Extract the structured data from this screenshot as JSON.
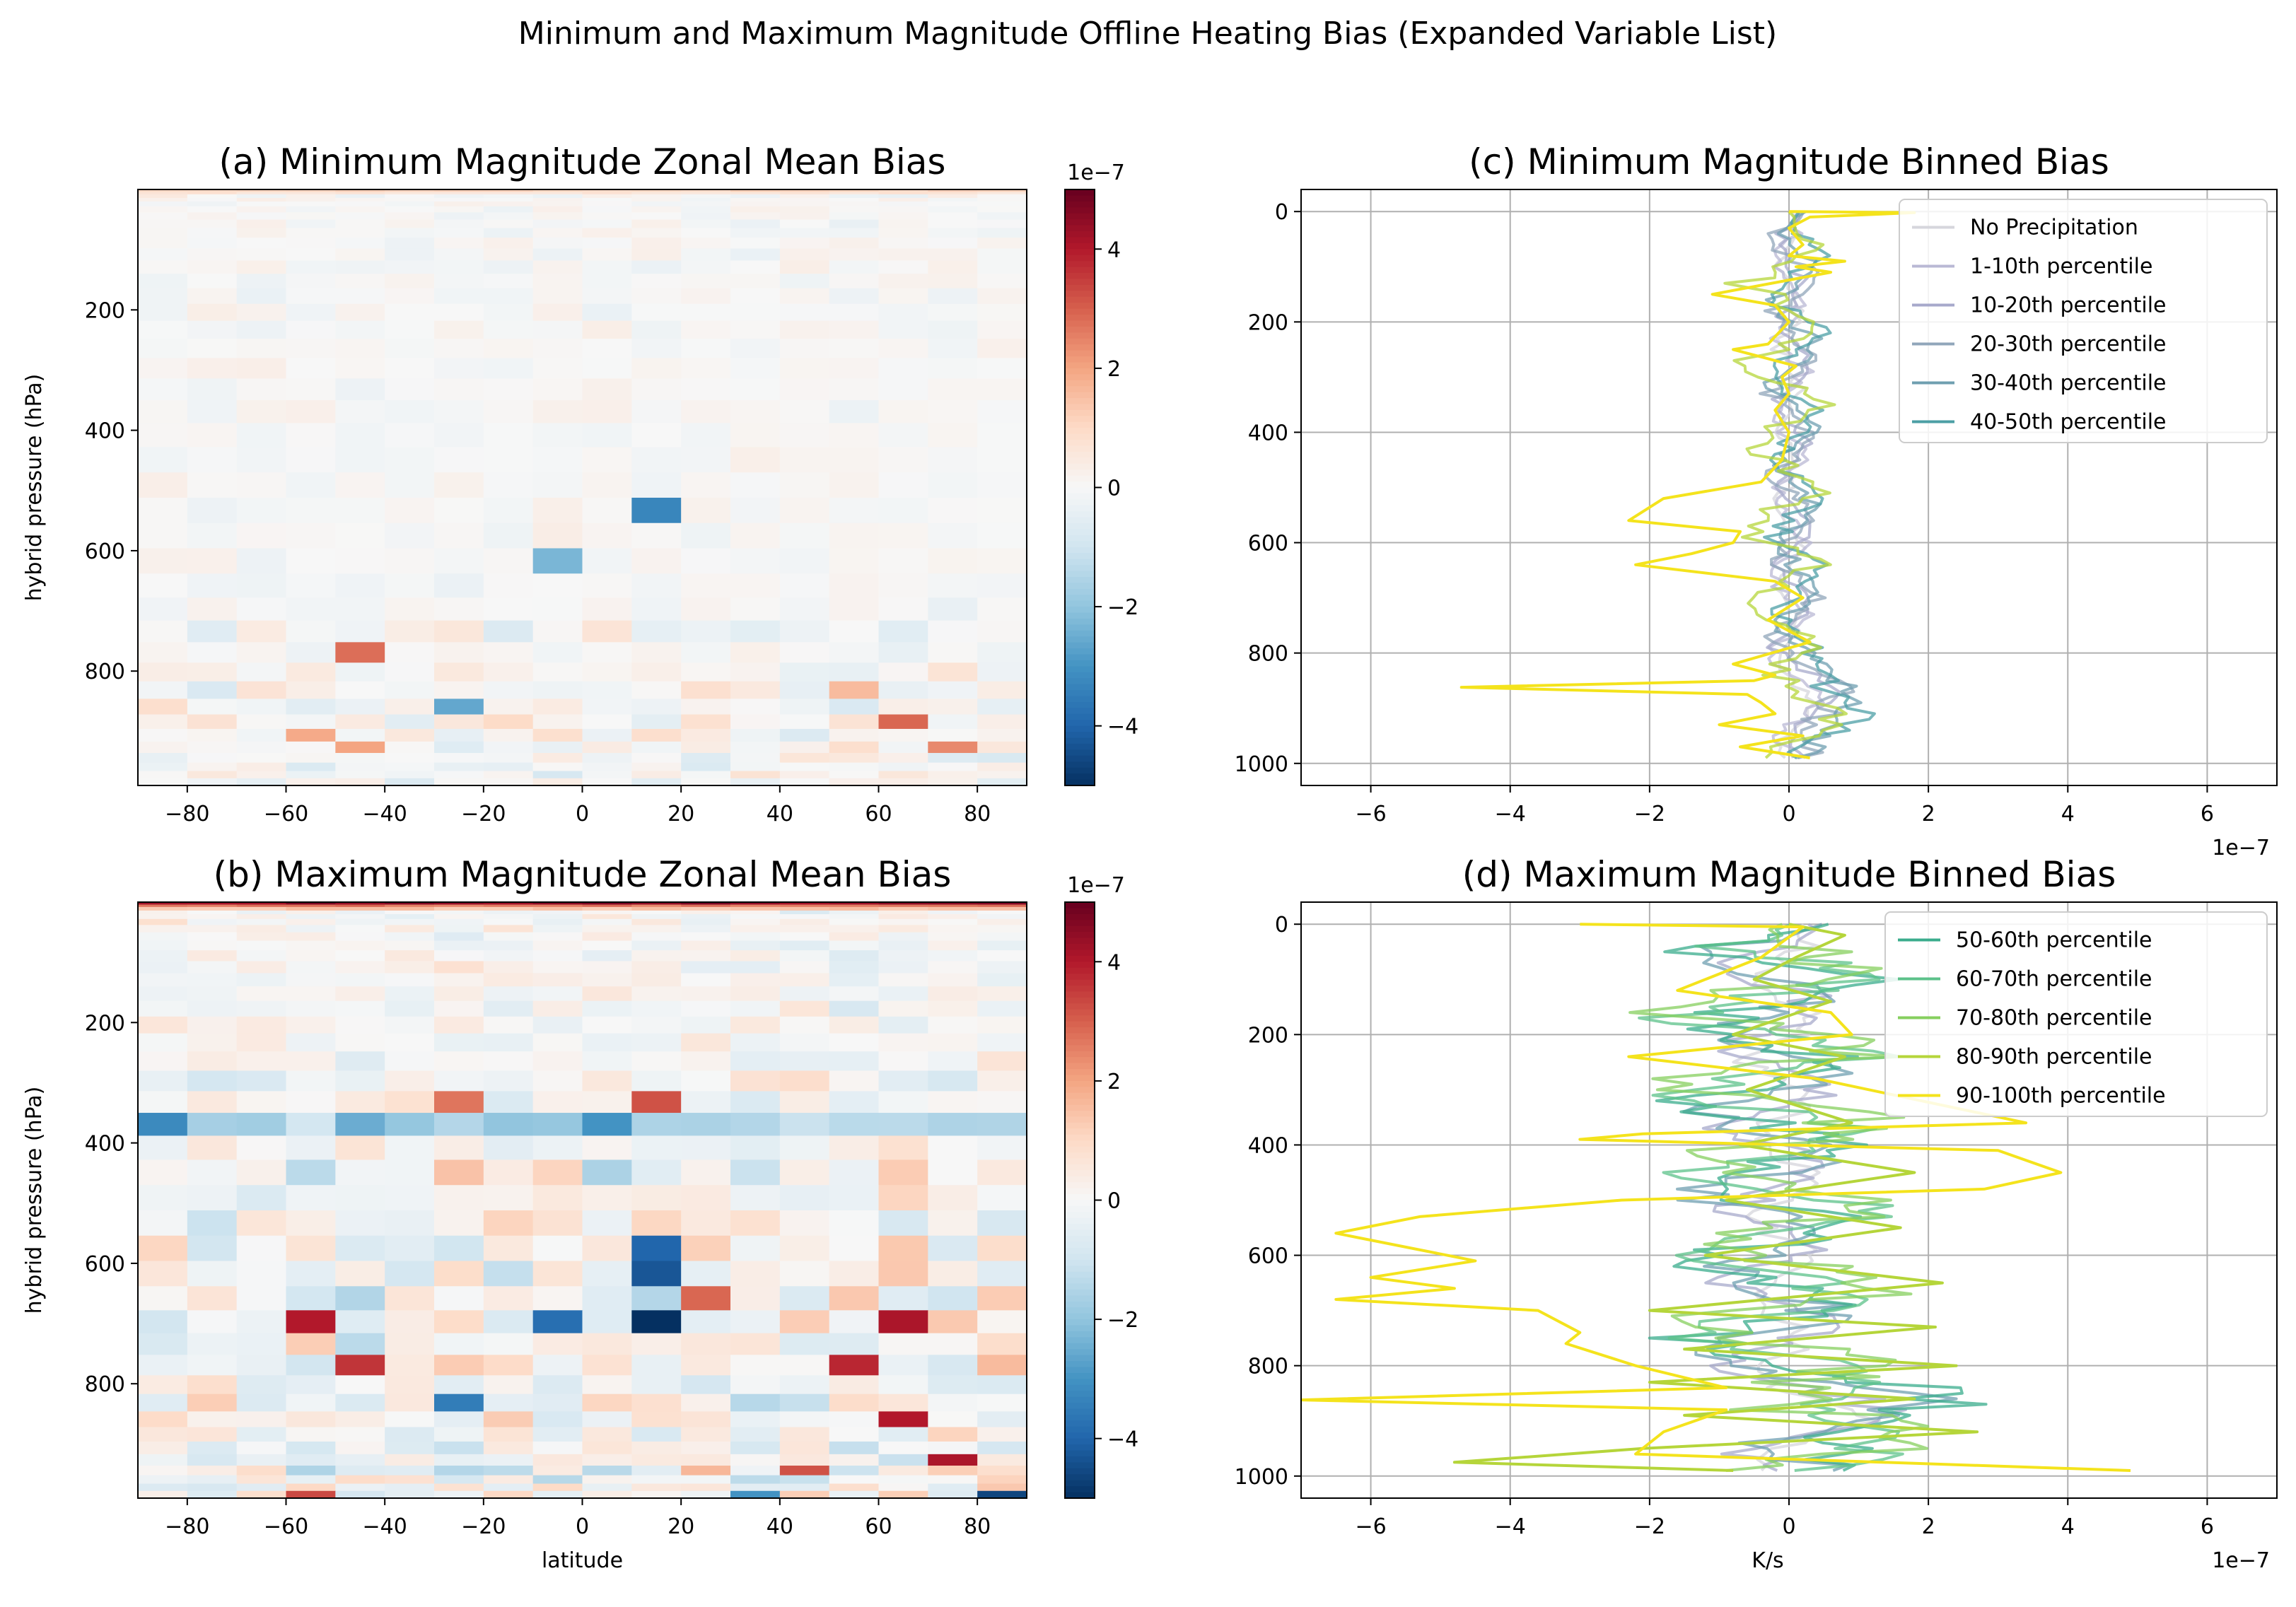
{
  "figure": {
    "suptitle": "Minimum and Maximum Magnitude Offline Heating Bias (Expanded Variable List)"
  },
  "colors": {
    "cmap": [
      "#053061",
      "#2166ac",
      "#4393c3",
      "#92c5de",
      "#d1e5f0",
      "#f7f7f7",
      "#fddbc7",
      "#f4a582",
      "#d6604d",
      "#b2182b",
      "#67001f"
    ],
    "legend_frame": "#cccccc",
    "grid": "#b0b0b0"
  },
  "chart_data": [
    {
      "id": "a",
      "type": "heatmap",
      "title": "(a) Minimum Magnitude Zonal Mean Bias",
      "xlabel": "",
      "ylabel": "hybrid pressure (hPa)",
      "xlim": [
        -90,
        90
      ],
      "ylim": [
        990,
        0
      ],
      "xticks": [
        "−80",
        "−60",
        "−40",
        "−20",
        "0",
        "20",
        "40",
        "60",
        "80"
      ],
      "xtick_values": [
        -80,
        -60,
        -40,
        -20,
        0,
        20,
        40,
        60,
        80
      ],
      "yticks": [
        "200",
        "400",
        "600",
        "800"
      ],
      "ytick_values": [
        200,
        400,
        600,
        800
      ],
      "n_lat": 18,
      "levels_hpa": [
        0,
        4,
        8,
        14,
        20,
        28,
        38,
        50,
        64,
        80,
        98,
        118,
        140,
        164,
        190,
        218,
        248,
        280,
        314,
        350,
        388,
        428,
        470,
        512,
        554,
        596,
        638,
        678,
        716,
        752,
        786,
        817,
        846,
        872,
        896,
        917,
        936,
        952,
        966,
        978,
        990
      ],
      "value_units": "1e-7 K/s",
      "scale_label": "1e−7",
      "colorbar": {
        "vmin": -5,
        "vmax": 5,
        "ticks": [
          "−4",
          "−2",
          "0",
          "2",
          "4"
        ],
        "tick_values": [
          -4,
          -2,
          0,
          2,
          4
        ]
      },
      "notable_cells": [
        {
          "lat": -45,
          "level_index": 29,
          "value": 2.8
        },
        {
          "lat": 15,
          "level_index": 23,
          "value": -3.3
        },
        {
          "lat": -5,
          "level_index": 25,
          "value": -2.3
        },
        {
          "lat": -25,
          "level_index": 32,
          "value": -2.6
        },
        {
          "lat": 65,
          "level_index": 33,
          "value": 2.9
        },
        {
          "lat": 75,
          "level_index": 35,
          "value": 2.4
        },
        {
          "lat": -55,
          "level_index": 34,
          "value": 1.9
        },
        {
          "lat": -45,
          "level_index": 35,
          "value": 2.0
        },
        {
          "lat": 55,
          "level_index": 31,
          "value": 1.6
        }
      ]
    },
    {
      "id": "b",
      "type": "heatmap",
      "title": "(b) Maximum Magnitude Zonal Mean Bias",
      "xlabel": "latitude",
      "ylabel": "hybrid pressure (hPa)",
      "xlim": [
        -90,
        90
      ],
      "ylim": [
        990,
        0
      ],
      "xticks": [
        "−80",
        "−60",
        "−40",
        "−20",
        "0",
        "20",
        "40",
        "60",
        "80"
      ],
      "xtick_values": [
        -80,
        -60,
        -40,
        -20,
        0,
        20,
        40,
        60,
        80
      ],
      "yticks": [
        "200",
        "400",
        "600",
        "800"
      ],
      "ytick_values": [
        200,
        400,
        600,
        800
      ],
      "n_lat": 18,
      "levels_hpa": [
        0,
        4,
        8,
        14,
        20,
        28,
        38,
        50,
        64,
        80,
        98,
        118,
        140,
        164,
        190,
        218,
        248,
        280,
        314,
        350,
        388,
        428,
        470,
        512,
        554,
        596,
        638,
        678,
        716,
        752,
        786,
        817,
        846,
        872,
        896,
        917,
        936,
        952,
        966,
        978,
        990
      ],
      "value_units": "1e-7 K/s",
      "scale_label": "1e−7",
      "colorbar": {
        "vmin": -5,
        "vmax": 5,
        "ticks": [
          "−4",
          "−2",
          "0",
          "2",
          "4"
        ],
        "tick_values": [
          -4,
          -2,
          0,
          2,
          4
        ]
      },
      "notable_cells": [
        {
          "lat": 15,
          "level_index": 27,
          "value": -5.0
        },
        {
          "lat": 15,
          "level_index": 24,
          "value": -4.0
        },
        {
          "lat": 15,
          "level_index": 25,
          "value": -4.3
        },
        {
          "lat": -5,
          "level_index": 27,
          "value": -3.8
        },
        {
          "lat": 5,
          "level_index": 19,
          "value": -3.0
        },
        {
          "lat": -55,
          "level_index": 27,
          "value": 4.0
        },
        {
          "lat": 65,
          "level_index": 27,
          "value": 4.1
        },
        {
          "lat": -45,
          "level_index": 29,
          "value": 3.6
        },
        {
          "lat": 55,
          "level_index": 29,
          "value": 3.8
        },
        {
          "lat": 65,
          "level_index": 32,
          "value": 4.0
        },
        {
          "lat": 75,
          "level_index": 35,
          "value": 4.1
        },
        {
          "lat": -85,
          "level_index": 19,
          "value": -3.2
        },
        {
          "lat": -45,
          "level_index": 19,
          "value": -2.5
        },
        {
          "lat": 15,
          "level_index": 18,
          "value": 3.2
        },
        {
          "lat": -25,
          "level_index": 18,
          "value": 2.7
        },
        {
          "lat": -25,
          "level_index": 31,
          "value": -3.5
        },
        {
          "lat": 85,
          "level_index": 39,
          "value": -4.6
        },
        {
          "lat": 25,
          "level_index": 26,
          "value": 2.9
        },
        {
          "lat": 35,
          "level_index": 39,
          "value": -3.0
        },
        {
          "lat": -55,
          "level_index": 39,
          "value": 3.3
        },
        {
          "lat": 45,
          "level_index": 36,
          "value": 3.2
        }
      ]
    },
    {
      "id": "c",
      "type": "line",
      "title": "(c) Minimum Magnitude Binned Bias",
      "xlabel": "",
      "ylabel": "",
      "xlim": [
        -7,
        7
      ],
      "ylim": [
        1040,
        -40
      ],
      "x_units": "1e-7 K/s",
      "scale_label": "1e−7",
      "xticks": [
        "−6",
        "−4",
        "−2",
        "0",
        "2",
        "4",
        "6"
      ],
      "xtick_values": [
        -6,
        -4,
        -2,
        0,
        2,
        4,
        6
      ],
      "yticks": [
        "0",
        "200",
        "400",
        "600",
        "800",
        "1000"
      ],
      "ytick_values": [
        0,
        200,
        400,
        600,
        800,
        1000
      ],
      "grid": true,
      "legend_position": "top-right",
      "series": [
        {
          "name": "No Precipitation",
          "color": "#d6d6dc",
          "amp": 0.15,
          "base": 0.0,
          "sfc": 0.2,
          "phase": 0.3
        },
        {
          "name": "1-10th percentile",
          "color": "#b9b8d4",
          "amp": 0.2,
          "base": 0.0,
          "sfc": 0.3,
          "phase": 1.1
        },
        {
          "name": "10-20th percentile",
          "color": "#a7a9cb",
          "amp": 0.2,
          "base": 0.05,
          "sfc": 0.5,
          "phase": 2.0
        },
        {
          "name": "20-30th percentile",
          "color": "#90a6ba",
          "amp": 0.25,
          "base": 0.05,
          "sfc": 0.8,
          "phase": 2.7
        },
        {
          "name": "30-40th percentile",
          "color": "#6f9fb0",
          "amp": 0.25,
          "base": 0.1,
          "sfc": 1.0,
          "phase": 3.5
        },
        {
          "name": "40-50th percentile",
          "color": "#4c9fa5",
          "amp": 0.3,
          "base": 0.1,
          "sfc": 1.1,
          "phase": 4.4
        },
        {
          "name": "80-90th percentile",
          "color": "#b5d53a",
          "amp": 0.45,
          "base": -0.1,
          "sfc": 0.6,
          "phase": 5.2,
          "in_legend": false
        },
        {
          "name": "90-100th percentile",
          "color": "#f4e31c",
          "in_legend": false,
          "points": [
            [
              0.0,
              0
            ],
            [
              1.8,
              2
            ],
            [
              0.3,
              10
            ],
            [
              0.0,
              30
            ],
            [
              0.2,
              60
            ],
            [
              0.0,
              80
            ],
            [
              0.8,
              90
            ],
            [
              0.1,
              100
            ],
            [
              0.6,
              110
            ],
            [
              -1.1,
              150
            ],
            [
              -0.2,
              170
            ],
            [
              0.0,
              200
            ],
            [
              -0.3,
              240
            ],
            [
              -0.8,
              250
            ],
            [
              0.1,
              280
            ],
            [
              -0.1,
              300
            ],
            [
              0.0,
              330
            ],
            [
              -0.2,
              360
            ],
            [
              0.0,
              400
            ],
            [
              -0.1,
              450
            ],
            [
              -0.4,
              490
            ],
            [
              -1.8,
              520
            ],
            [
              -2.3,
              560
            ],
            [
              -0.7,
              580
            ],
            [
              -0.8,
              600
            ],
            [
              -1.4,
              620
            ],
            [
              -2.2,
              640
            ],
            [
              -0.2,
              670
            ],
            [
              0.2,
              700
            ],
            [
              -0.3,
              740
            ],
            [
              0.3,
              780
            ],
            [
              -0.8,
              820
            ],
            [
              -0.2,
              840
            ],
            [
              -0.5,
              850
            ],
            [
              -4.7,
              862
            ],
            [
              -0.6,
              875
            ],
            [
              -0.4,
              890
            ],
            [
              -0.2,
              910
            ],
            [
              -1.0,
              930
            ],
            [
              0.2,
              950
            ],
            [
              -0.7,
              970
            ],
            [
              0.3,
              990
            ]
          ]
        }
      ]
    },
    {
      "id": "d",
      "type": "line",
      "title": "(d) Maximum Magnitude Binned Bias",
      "xlabel": "K/s",
      "ylabel": "",
      "xlim": [
        -7,
        7
      ],
      "ylim": [
        1040,
        -40
      ],
      "x_units": "1e-7 K/s",
      "scale_label": "1e−7",
      "xticks": [
        "−6",
        "−4",
        "−2",
        "0",
        "2",
        "4",
        "6"
      ],
      "xtick_values": [
        -6,
        -4,
        -2,
        0,
        2,
        4,
        6
      ],
      "yticks": [
        "0",
        "200",
        "400",
        "600",
        "800",
        "1000"
      ],
      "ytick_values": [
        0,
        200,
        400,
        600,
        800,
        1000
      ],
      "grid": true,
      "legend_position": "top-right",
      "series": [
        {
          "name": "No Precipitation",
          "color": "#d6d6dc",
          "amp": 0.4,
          "base": -0.1,
          "sfc": 0.8,
          "phase": 0.3,
          "in_legend": false
        },
        {
          "name": "10-20th percentile",
          "color": "#a7a9cb",
          "amp": 0.6,
          "base": -0.2,
          "sfc": 1.2,
          "phase": 1.4,
          "in_legend": false
        },
        {
          "name": "30-40th percentile",
          "color": "#6f9fb0",
          "amp": 0.8,
          "base": -0.3,
          "sfc": 2.0,
          "phase": 2.4,
          "in_legend": false
        },
        {
          "name": "50-60th percentile",
          "color": "#3aac8c",
          "amp": 1.0,
          "base": -0.3,
          "sfc": 2.6,
          "phase": 3.1
        },
        {
          "name": "60-70th percentile",
          "color": "#5cc18a",
          "amp": 1.1,
          "base": -0.2,
          "sfc": 2.3,
          "phase": 3.9
        },
        {
          "name": "70-80th percentile",
          "color": "#86cf5e",
          "amp": 1.3,
          "base": -0.1,
          "sfc": 1.6,
          "phase": 4.6
        },
        {
          "name": "80-90th percentile",
          "color": "#b5d53a",
          "points": [
            [
              0.0,
              0
            ],
            [
              0.8,
              20
            ],
            [
              0.1,
              60
            ],
            [
              -0.5,
              100
            ],
            [
              0.6,
              140
            ],
            [
              -0.8,
              200
            ],
            [
              0.8,
              240
            ],
            [
              -0.6,
              300
            ],
            [
              0.9,
              360
            ],
            [
              -0.7,
              400
            ],
            [
              1.8,
              450
            ],
            [
              -0.9,
              500
            ],
            [
              1.6,
              550
            ],
            [
              -1.2,
              600
            ],
            [
              2.2,
              650
            ],
            [
              -2.0,
              700
            ],
            [
              2.1,
              730
            ],
            [
              -1.5,
              770
            ],
            [
              2.4,
              800
            ],
            [
              -2.0,
              830
            ],
            [
              1.8,
              860
            ],
            [
              -1.5,
              890
            ],
            [
              2.7,
              920
            ],
            [
              -2.1,
              950
            ],
            [
              -4.8,
              975
            ],
            [
              -0.8,
              990
            ]
          ]
        },
        {
          "name": "90-100th percentile",
          "color": "#f4e31c",
          "points": [
            [
              -3.0,
              0
            ],
            [
              0.2,
              5
            ],
            [
              -0.4,
              60
            ],
            [
              -1.6,
              120
            ],
            [
              0.6,
              160
            ],
            [
              0.9,
              200
            ],
            [
              -2.3,
              240
            ],
            [
              0.4,
              280
            ],
            [
              3.4,
              360
            ],
            [
              -2.1,
              380
            ],
            [
              -3.0,
              390
            ],
            [
              3.0,
              410
            ],
            [
              3.9,
              450
            ],
            [
              2.8,
              480
            ],
            [
              -2.4,
              500
            ],
            [
              -5.3,
              530
            ],
            [
              -6.5,
              560
            ],
            [
              -4.5,
              610
            ],
            [
              -6.0,
              640
            ],
            [
              -4.8,
              660
            ],
            [
              -6.5,
              680
            ],
            [
              -3.6,
              700
            ],
            [
              -3.0,
              740
            ],
            [
              -3.2,
              760
            ],
            [
              -2.2,
              800
            ],
            [
              -0.9,
              840
            ],
            [
              -7.0,
              862
            ],
            [
              -0.9,
              880
            ],
            [
              -1.8,
              920
            ],
            [
              -2.2,
              960
            ],
            [
              4.9,
              990
            ]
          ]
        }
      ]
    }
  ]
}
